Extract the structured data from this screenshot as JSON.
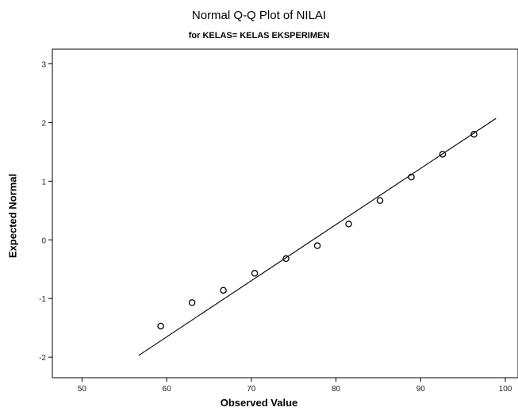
{
  "chart_data": {
    "type": "scatter",
    "title": "Normal Q-Q Plot of NILAI",
    "subtitle": "for KELAS= KELAS EKSPERIMEN",
    "xlabel": "Observed Value",
    "ylabel": "Expected Normal",
    "xlim": [
      46.5,
      101.5
    ],
    "ylim": [
      -2.35,
      3.25
    ],
    "x_ticks": [
      50,
      60,
      70,
      80,
      90,
      100
    ],
    "y_ticks": [
      3,
      2,
      1,
      0,
      -1,
      -2
    ],
    "grid": false,
    "legend": "none",
    "series": [
      {
        "marker": "open-circle",
        "x": [
          59.3,
          63.0,
          66.7,
          70.4,
          74.1,
          77.8,
          81.5,
          85.2,
          88.9,
          92.6,
          96.3
        ],
        "y": [
          -1.47,
          -1.07,
          -0.86,
          -0.57,
          -0.32,
          -0.1,
          0.27,
          0.67,
          1.07,
          1.46,
          1.8
        ]
      }
    ],
    "reference_line": {
      "x": [
        56.7,
        98.9
      ],
      "y": [
        -1.97,
        2.07
      ]
    },
    "colors": {
      "background": "#ffffff",
      "axis": "#000000",
      "line": "#000000",
      "marker": "#000000"
    }
  }
}
